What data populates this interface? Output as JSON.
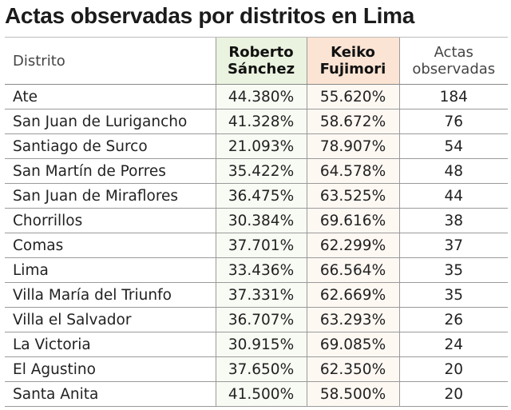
{
  "title": "Actas observadas por distritos en Lima",
  "table": {
    "header": [
      "Distrito",
      "Roberto Sánchez",
      "Keiko Fujimori",
      "Actas observadas"
    ],
    "rows": [
      [
        "Ate",
        "44.380%",
        "55.620%",
        "184"
      ],
      [
        "San Juan de Lurigancho",
        "41.328%",
        "58.672%",
        "76"
      ],
      [
        "Santiago de Surco",
        "21.093%",
        "78.907%",
        "54"
      ],
      [
        "San Martín de Porres",
        "35.422%",
        "64.578%",
        "48"
      ],
      [
        "San Juan de Miraflores",
        "36.475%",
        "63.525%",
        "44"
      ],
      [
        "Chorrillos",
        "30.384%",
        "69.616%",
        "38"
      ],
      [
        "Comas",
        "37.701%",
        "62.299%",
        "37"
      ],
      [
        "Lima",
        "33.436%",
        "66.564%",
        "35"
      ],
      [
        "Villa María del Triunfo",
        "37.331%",
        "62.669%",
        "35"
      ],
      [
        "Villa el Salvador",
        "36.707%",
        "63.293%",
        "26"
      ],
      [
        "La Victoria",
        "30.915%",
        "69.085%",
        "24"
      ],
      [
        "El Agustino",
        "37.650%",
        "62.350%",
        "20"
      ],
      [
        "Santa Anita",
        "41.500%",
        "58.500%",
        "20"
      ]
    ]
  }
}
